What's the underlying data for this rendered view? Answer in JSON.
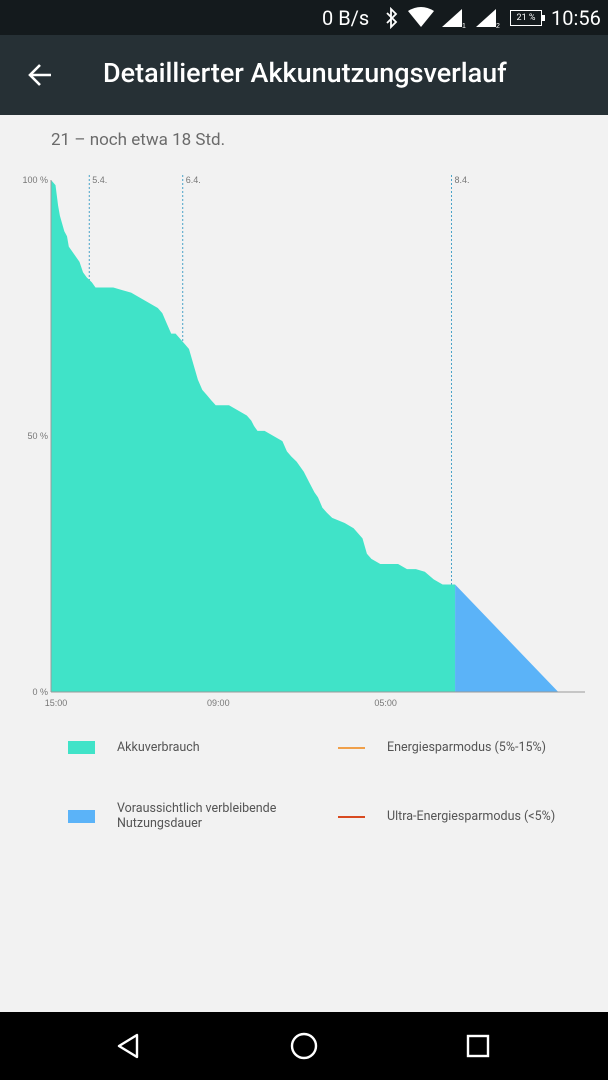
{
  "status_bar": {
    "network_speed": "0 B/s",
    "battery_percent": "21 %",
    "time": "10:56",
    "icons": [
      "bluetooth-icon",
      "wifi-icon",
      "signal-1-icon",
      "signal-2-icon",
      "battery-icon"
    ]
  },
  "app_bar": {
    "back_icon": "arrow-back-icon",
    "title": "Detaillierter Akkunutzungsverlauf"
  },
  "summary": "21 – noch etwa 18 Std.",
  "chart_data": {
    "type": "area",
    "ylabels": [
      "100 %",
      "50 %",
      "0 %"
    ],
    "xlabels": [
      "15:00",
      "09:00",
      "05:00"
    ],
    "day_markers": [
      "5.4.",
      "6.4.",
      "8.4."
    ],
    "ylim": [
      0,
      100
    ],
    "x_unit": "hours since start (15:00)",
    "xlim": [
      0,
      60
    ],
    "series": [
      {
        "name": "Akkuverbrauch",
        "color": "#40e3c8",
        "points": [
          [
            0,
            100
          ],
          [
            0.5,
            99
          ],
          [
            0.8,
            95
          ],
          [
            1,
            93
          ],
          [
            1.5,
            90
          ],
          [
            1.8,
            89
          ],
          [
            2,
            87
          ],
          [
            2.4,
            86
          ],
          [
            2.8,
            85
          ],
          [
            3.2,
            84
          ],
          [
            3.6,
            82
          ],
          [
            4,
            81
          ],
          [
            4.6,
            80
          ],
          [
            5,
            79
          ],
          [
            5.5,
            79
          ],
          [
            6,
            79
          ],
          [
            7,
            79
          ],
          [
            8,
            78.5
          ],
          [
            9,
            78
          ],
          [
            10,
            77
          ],
          [
            11,
            76
          ],
          [
            12,
            75
          ],
          [
            12.5,
            74
          ],
          [
            13,
            72
          ],
          [
            13.5,
            70
          ],
          [
            14,
            70
          ],
          [
            14.5,
            69
          ],
          [
            15,
            68
          ],
          [
            15.5,
            67
          ],
          [
            16,
            64
          ],
          [
            16.5,
            61
          ],
          [
            17,
            59
          ],
          [
            17.5,
            58
          ],
          [
            18,
            57
          ],
          [
            18.5,
            56
          ],
          [
            19,
            56
          ],
          [
            20,
            56
          ],
          [
            21,
            55
          ],
          [
            22,
            54
          ],
          [
            22.5,
            53
          ],
          [
            22.8,
            52
          ],
          [
            23.2,
            51
          ],
          [
            24,
            51
          ],
          [
            25,
            50
          ],
          [
            26,
            49
          ],
          [
            26.5,
            47
          ],
          [
            27,
            46
          ],
          [
            27.6,
            45
          ],
          [
            28.4,
            43
          ],
          [
            29,
            41
          ],
          [
            29.6,
            39
          ],
          [
            30,
            38
          ],
          [
            30.5,
            36
          ],
          [
            31,
            35
          ],
          [
            31.6,
            34
          ],
          [
            33,
            33
          ],
          [
            34,
            32
          ],
          [
            35,
            30
          ],
          [
            35.5,
            27
          ],
          [
            36,
            26
          ],
          [
            37,
            25
          ],
          [
            38,
            25
          ],
          [
            39,
            25
          ],
          [
            40,
            24
          ],
          [
            41,
            24
          ],
          [
            42,
            23.5
          ],
          [
            43,
            22
          ],
          [
            44,
            21
          ],
          [
            45,
            21
          ],
          [
            45.4,
            21
          ]
        ]
      },
      {
        "name": "Voraussichtlich verbleibende Nutzungsdauer",
        "color": "#5bb3f8",
        "points": [
          [
            45.4,
            21
          ],
          [
            57,
            0
          ]
        ]
      }
    ],
    "legend": [
      {
        "label": "Akkuverbrauch",
        "kind": "swatch",
        "color": "#40e3c8"
      },
      {
        "label": "Energiesparmodus (5%-15%)",
        "kind": "line",
        "color": "#f0a04a"
      },
      {
        "label": "Voraussichtlich verbleibende\nNutzungsdauer",
        "kind": "swatch",
        "color": "#5bb3f8"
      },
      {
        "label": "Ultra-Energiesparmodus (<5%)",
        "kind": "line",
        "color": "#d84a20"
      }
    ]
  },
  "nav_bar": {
    "icons": [
      "back-triangle-icon",
      "home-circle-icon",
      "recents-square-icon"
    ]
  }
}
